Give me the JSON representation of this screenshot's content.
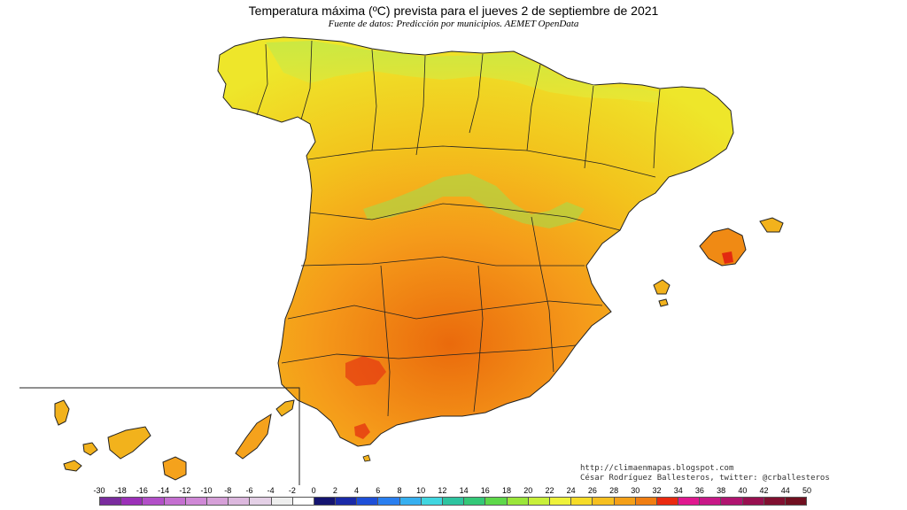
{
  "title": "Temperatura máxima (ºC) prevista para el jueves 2 de septiembre de 2021",
  "subtitle": "Fuente de datos: Predicción por municipios. AEMET OpenData",
  "credits": {
    "blog": "http://climaenmapas.blogspot.com",
    "author": "César Rodríguez Ballesteros, twitter: @crballesteros"
  },
  "colors": {
    "land_warm": "#f5a623",
    "land_mild": "#f0d000",
    "land_cool": "#d8ee40",
    "land_hot": "#e8720c",
    "sea": "#ffffff",
    "border": "#222222"
  },
  "legend": {
    "labels": [
      "-30",
      "-18",
      "-16",
      "-14",
      "-12",
      "-10",
      "-8",
      "-6",
      "-4",
      "-2",
      "0",
      "2",
      "4",
      "6",
      "8",
      "10",
      "12",
      "14",
      "16",
      "18",
      "20",
      "22",
      "24",
      "26",
      "28",
      "30",
      "32",
      "34",
      "36",
      "38",
      "40",
      "42",
      "44",
      "50"
    ],
    "colors": [
      "#7a2c9e",
      "#9b30b8",
      "#b24fc8",
      "#c46fd0",
      "#cf88d6",
      "#d6a0d8",
      "#dcb8de",
      "#e4d0e6",
      "#eeeeee",
      "#ffffff",
      "#141470",
      "#1a2aa8",
      "#1e4fd8",
      "#2a7ff0",
      "#36b0f0",
      "#40d6e0",
      "#2ec4a0",
      "#34c878",
      "#5ed84a",
      "#9ae63a",
      "#c8f03a",
      "#eef23a",
      "#f6dc28",
      "#f6c020",
      "#f4a018",
      "#f07e12",
      "#ea2a10",
      "#e01890",
      "#c81888",
      "#b01470",
      "#981050",
      "#801030",
      "#701020"
    ]
  }
}
